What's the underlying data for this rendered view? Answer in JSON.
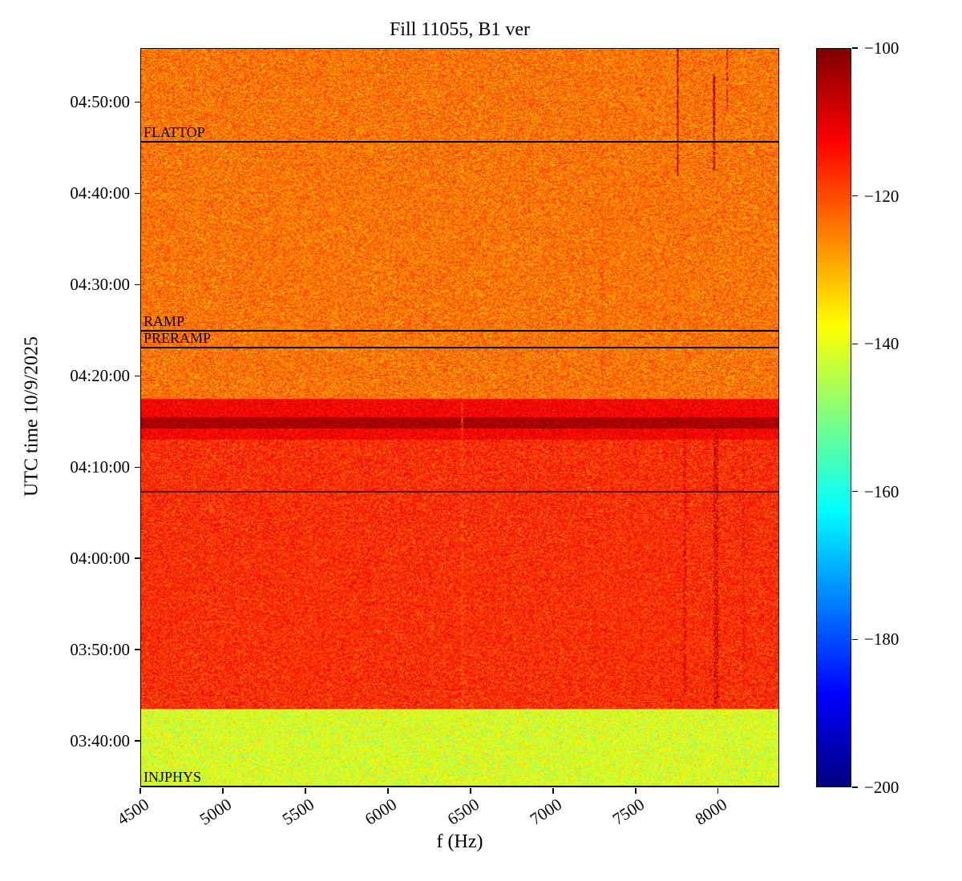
{
  "chart_data": {
    "type": "heatmap",
    "title": "Fill 11055, B1 ver",
    "xlabel": "f (Hz)",
    "ylabel": "UTC time 10/9/2025",
    "f_start": 4500,
    "f_end": 8370,
    "t_start": "03:34:55",
    "t_end": "04:55:55",
    "x_ticks": [
      "4500",
      "5000",
      "5500",
      "6000",
      "6500",
      "7000",
      "7500",
      "8000"
    ],
    "y_ticks": [
      "03:40:00",
      "03:50:00",
      "04:00:00",
      "04:10:00",
      "04:20:00",
      "04:30:00",
      "04:40:00",
      "04:50:00"
    ],
    "colorbar": {
      "colormap": "jet",
      "vmin": -200,
      "vmax": -100,
      "ticks": [
        -100,
        -120,
        -140,
        -160,
        -180,
        -200
      ],
      "tick_labels": [
        "−100",
        "−120",
        "−140",
        "−160",
        "−180",
        "−200"
      ]
    },
    "annotations": [
      {
        "label": "FLATTOP",
        "time": "04:45:45"
      },
      {
        "label": "RAMP",
        "time": "04:25:00"
      },
      {
        "label": "PRERAMP",
        "time": "04:23:10"
      },
      {
        "label": "INJPHYS",
        "time": "03:35:00"
      }
    ],
    "extra_lines": [
      {
        "time": "04:07:30",
        "opacity": 0.65
      }
    ],
    "bands": [
      {
        "t0": "03:34:55",
        "t1": "03:43:25",
        "db": -141,
        "spread": 5,
        "note": "injection plateau, yellow-green"
      },
      {
        "t0": "03:43:25",
        "t1": "04:17:00",
        "db": -117,
        "spread": 4.5,
        "note": "injection physics, red-orange"
      },
      {
        "t0": "04:17:00",
        "t1": "04:55:55",
        "db": -124,
        "spread": 4.5,
        "note": "ramp/flattop, orange"
      },
      {
        "t0": "04:13:00",
        "t1": "04:17:30",
        "db": -112,
        "spread": 3,
        "note": "darker transition strip"
      },
      {
        "t0": "04:14:15",
        "t1": "04:15:30",
        "db": -104,
        "spread": 2.5,
        "note": "dark red band"
      }
    ],
    "verticals": [
      {
        "hz": 7800,
        "width_hz": 20,
        "t0": "03:45:00",
        "t1": "04:15:30",
        "db": -107,
        "density": 0.4
      },
      {
        "hz": 7990,
        "width_hz": 28,
        "t0": "03:43:30",
        "t1": "04:15:30",
        "db": -105,
        "density": 0.45
      },
      {
        "hz": 8160,
        "width_hz": 16,
        "t0": "03:46:00",
        "t1": "04:13:00",
        "db": -108,
        "density": 0.3
      },
      {
        "hz": 7760,
        "width_hz": 10,
        "t0": "04:42:00",
        "t1": "04:55:55",
        "db": -104,
        "density": 0.85
      },
      {
        "hz": 7980,
        "width_hz": 12,
        "t0": "04:42:30",
        "t1": "04:53:00",
        "db": -105,
        "density": 0.75
      },
      {
        "hz": 8060,
        "width_hz": 10,
        "t0": "04:49:00",
        "t1": "04:55:55",
        "db": -107,
        "density": 0.55
      },
      {
        "hz": 6450,
        "width_hz": 14,
        "t0": "03:43:30",
        "t1": "04:17:00",
        "db": -122,
        "density": 0.4
      },
      {
        "hz": 7300,
        "width_hz": 10,
        "t0": "04:17:00",
        "t1": "04:50:00",
        "db": -118,
        "density": 0.35
      }
    ],
    "noise_seed": 1234567
  }
}
